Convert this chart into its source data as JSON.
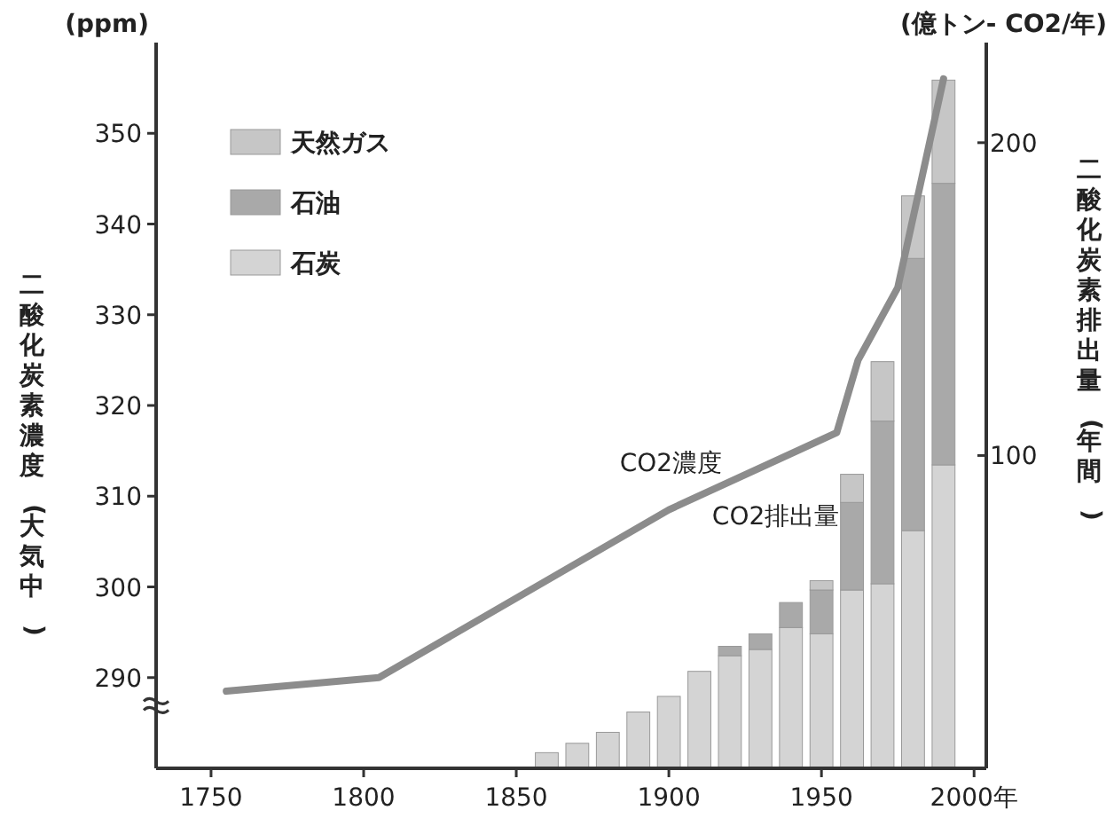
{
  "chart_data": {
    "type": "bar",
    "stacked": true,
    "ylabel": "二酸化炭素濃度(大気中)",
    "y2label": "二酸化炭素排出量(年間)",
    "x": [
      1860,
      1870,
      1880,
      1890,
      1900,
      1910,
      1920,
      1930,
      1940,
      1950,
      1960,
      1970,
      1980,
      1990
    ],
    "series": [
      {
        "name": "石炭",
        "color": "#d4d4d4",
        "axis": "y2",
        "values": [
          5,
          8,
          11.5,
          18,
          23,
          31,
          36,
          38,
          45,
          43,
          57,
          59,
          76,
          97
        ]
      },
      {
        "name": "石油",
        "color": "#a9a9a9",
        "axis": "y2",
        "values": [
          0,
          0,
          0,
          0,
          0,
          0,
          3,
          5,
          8,
          14,
          28,
          52,
          87,
          90
        ]
      },
      {
        "name": "天然ガス",
        "color": "#c6c6c6",
        "axis": "y2",
        "values": [
          0,
          0,
          0,
          0,
          0,
          0,
          0,
          0,
          0,
          3,
          9,
          19,
          20,
          33
        ]
      },
      {
        "name": "CO2濃度",
        "type": "line",
        "color": "#8c8c8c",
        "x": [
          1755,
          1805,
          1900,
          1955,
          1962,
          1975,
          1990
        ],
        "values": [
          288.5,
          290,
          308.5,
          317,
          325,
          333,
          356
        ]
      }
    ],
    "xlim": [
      1732,
      2004
    ],
    "xticks": [
      1750,
      1800,
      1850,
      1900,
      1950,
      {
        "value": 2000,
        "label": "2000年"
      }
    ],
    "ylim": [
      280,
      360
    ],
    "yticks": [
      290,
      300,
      310,
      320,
      330,
      340,
      350
    ],
    "y2lim": [
      0,
      232
    ],
    "y2ticks": [
      100,
      200
    ],
    "legend": "top left",
    "annotations": [
      "(ppm)",
      "(億トン- CO2/年)",
      "CO2排出量"
    ]
  }
}
